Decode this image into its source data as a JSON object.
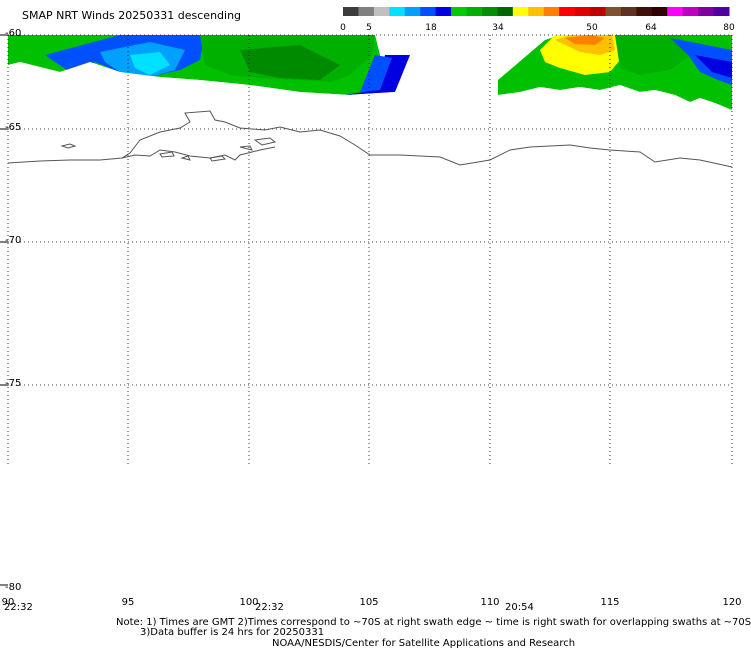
{
  "title": "SMAP NRT Winds  20250331  descending",
  "colorbar": {
    "ticks": [
      "0",
      "5",
      "18",
      "34",
      "50",
      "64",
      "80"
    ],
    "segments": [
      "#3c3c3c",
      "#7f7f7f",
      "#c0c0c0",
      "#00e0ff",
      "#00a0ff",
      "#0050ff",
      "#0000e0",
      "#00cc00",
      "#00b000",
      "#009000",
      "#006800",
      "#ffff00",
      "#ffc000",
      "#ff8000",
      "#ff0000",
      "#e00000",
      "#c00000",
      "#805030",
      "#603020",
      "#401008",
      "#300000",
      "#ff00ff",
      "#c000c0",
      "#8000a0",
      "#5000a0"
    ]
  },
  "map": {
    "lat_labels": [
      "-60",
      "-65",
      "-70",
      "-75",
      "-80"
    ],
    "lon_labels": [
      "90",
      "95",
      "100",
      "105",
      "110",
      "115",
      "120"
    ],
    "time_labels": [
      "22:32",
      "22:32",
      "20:54"
    ]
  },
  "notes": {
    "line1": "Note: 1) Times are GMT 2)Times correspond to ~70S at right swath edge ~ time is right swath for overlapping swaths at ~70S",
    "line2": "3)Data buffer is 24 hrs for 20250331",
    "line3": "NOAA/NESDIS/Center for Satellite Applications and Research"
  }
}
